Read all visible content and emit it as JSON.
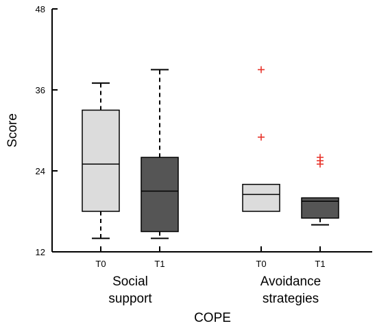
{
  "chart_data": {
    "type": "boxplot",
    "ylabel": "Score",
    "xlabel": "COPE",
    "ylim": [
      12,
      48
    ],
    "yticks": [
      12,
      24,
      36,
      48
    ],
    "groups": [
      {
        "label_lines": [
          "Social",
          "support"
        ],
        "boxes": [
          {
            "label": "T0",
            "min": 14,
            "q1": 18,
            "median": 25,
            "q3": 33,
            "max": 37,
            "outliers": [],
            "fill": "#dcdcdc"
          },
          {
            "label": "T1",
            "min": 14,
            "q1": 15,
            "median": 21,
            "q3": 26,
            "max": 39,
            "outliers": [],
            "fill": "#555555"
          }
        ]
      },
      {
        "label_lines": [
          "Avoidance",
          "strategies"
        ],
        "boxes": [
          {
            "label": "T0",
            "min": 18,
            "q1": 18,
            "median": 20.5,
            "q3": 22,
            "max": 22,
            "outliers": [
              29,
              39
            ],
            "fill": "#dcdcdc"
          },
          {
            "label": "T1",
            "min": 16,
            "q1": 17,
            "median": 19.5,
            "q3": 20,
            "max": 20,
            "outliers": [
              25,
              25.5,
              26
            ],
            "fill": "#555555"
          }
        ]
      }
    ],
    "outlier_color": "#e8332a"
  }
}
